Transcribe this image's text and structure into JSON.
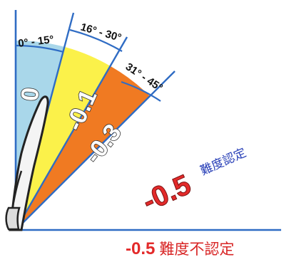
{
  "arc_labels": {
    "zone1": "0° - 15°",
    "zone2": "16° - 30°",
    "zone3": "31° - 45°"
  },
  "zone_values": {
    "zone1": "0",
    "zone2": "-0.1",
    "zone3": "-0.3"
  },
  "zone_colors": {
    "zone1": "#a9d7ea",
    "zone2": "#fbf14a",
    "zone3": "#f07a22",
    "lines": "#2f6cc4"
  },
  "certified": {
    "value": "-0.5",
    "text": "難度認定"
  },
  "not_certified": {
    "value": "-0.5",
    "text": "難度不認定"
  }
}
